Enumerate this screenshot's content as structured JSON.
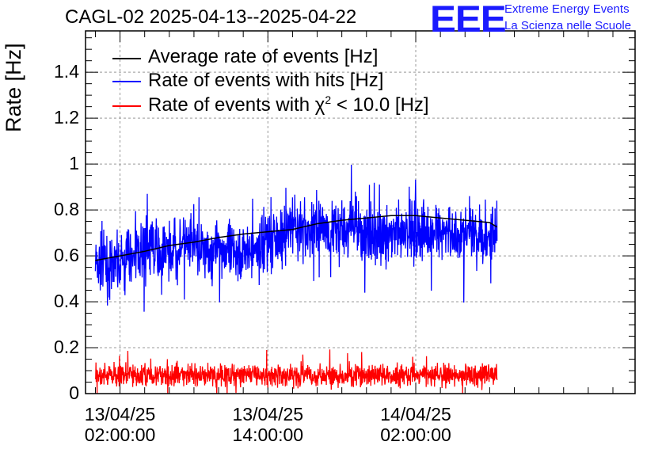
{
  "title": "CAGL-02 2025-04-13--2025-04-22",
  "logo": {
    "mark": "EEE",
    "line1": "Extreme Energy Events",
    "line2": "La Scienza nelle Scuole",
    "color": "#1a1aff"
  },
  "chart_data": {
    "type": "line",
    "ylabel": "Rate [Hz]",
    "xlabel": "",
    "ylim": [
      0,
      1.58
    ],
    "yticks": [
      "0",
      "0.2",
      "0.4",
      "0.6",
      "0.8",
      "1",
      "1.2",
      "1.4"
    ],
    "ytick_values": [
      0,
      0.2,
      0.4,
      0.6,
      0.8,
      1.0,
      1.2,
      1.4
    ],
    "xlim_hours": [
      -0.8,
      43.8
    ],
    "xticks": [
      {
        "hour": 2,
        "date": "13/04/25",
        "time": "02:00:00"
      },
      {
        "hour": 14,
        "date": "13/04/25",
        "time": "14:00:00"
      },
      {
        "hour": 26,
        "date": "14/04/25",
        "time": "02:00:00"
      }
    ],
    "grid": true,
    "legend_position": "top-left",
    "series": [
      {
        "name": "Average rate of events [Hz]",
        "color": "#000000",
        "hours": [
          0,
          2,
          4,
          6,
          8,
          10,
          12,
          14,
          16,
          18,
          20,
          22,
          24,
          26,
          28,
          30,
          32,
          32.6
        ],
        "values": [
          0.58,
          0.6,
          0.62,
          0.645,
          0.66,
          0.68,
          0.695,
          0.705,
          0.715,
          0.74,
          0.755,
          0.765,
          0.775,
          0.775,
          0.765,
          0.755,
          0.745,
          0.725
        ]
      },
      {
        "name": "Rate of events with hits [Hz]",
        "color": "#0000ff",
        "hours": [
          0,
          1,
          2,
          3,
          4,
          5,
          6,
          7,
          8,
          9,
          10,
          11,
          12,
          13,
          14,
          15,
          16,
          17,
          18,
          19,
          20,
          21,
          22,
          23,
          24,
          25,
          26,
          27,
          28,
          29,
          30,
          31,
          32,
          32.6
        ],
        "values": [
          0.57,
          0.54,
          0.56,
          0.6,
          0.63,
          0.62,
          0.61,
          0.64,
          0.63,
          0.62,
          0.64,
          0.6,
          0.63,
          0.62,
          0.67,
          0.68,
          0.71,
          0.69,
          0.72,
          0.71,
          0.7,
          0.73,
          0.68,
          0.66,
          0.7,
          0.69,
          0.72,
          0.7,
          0.69,
          0.7,
          0.68,
          0.69,
          0.7,
          0.69
        ],
        "noise": 0.09,
        "peak_max": 1.02,
        "dip_min": 0.3
      },
      {
        "name_prefix": "Rate of events with ",
        "name_symbol": "χ",
        "name_sup": "2",
        "name_suffix": " < 10.0 [Hz]",
        "color": "#ff0000",
        "hours": [
          0,
          32.6
        ],
        "values": [
          0.08,
          0.08
        ],
        "noise": 0.035,
        "peak_max": 0.22,
        "dip_min": 0.0
      }
    ]
  }
}
